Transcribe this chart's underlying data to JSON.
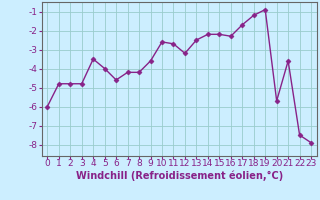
{
  "x": [
    0,
    1,
    2,
    3,
    4,
    5,
    6,
    7,
    8,
    9,
    10,
    11,
    12,
    13,
    14,
    15,
    16,
    17,
    18,
    19,
    20,
    21,
    22,
    23
  ],
  "y": [
    -6.0,
    -4.8,
    -4.8,
    -4.8,
    -3.5,
    -4.0,
    -4.6,
    -4.2,
    -4.2,
    -3.6,
    -2.6,
    -2.7,
    -3.2,
    -2.5,
    -2.2,
    -2.2,
    -2.3,
    -1.7,
    -1.2,
    -0.9,
    -5.7,
    -3.6,
    -7.5,
    -7.9
  ],
  "line_color": "#882288",
  "marker": "D",
  "markersize": 2.5,
  "linewidth": 1.0,
  "xlabel": "Windchill (Refroidissement éolien,°C)",
  "xlabel_fontsize": 7,
  "xlim": [
    -0.5,
    23.5
  ],
  "ylim": [
    -8.6,
    -0.5
  ],
  "yticks": [
    -8,
    -7,
    -6,
    -5,
    -4,
    -3,
    -2,
    -1
  ],
  "xticks": [
    0,
    1,
    2,
    3,
    4,
    5,
    6,
    7,
    8,
    9,
    10,
    11,
    12,
    13,
    14,
    15,
    16,
    17,
    18,
    19,
    20,
    21,
    22,
    23
  ],
  "background_color": "#cceeff",
  "grid_color": "#99cccc",
  "tick_color": "#882288",
  "tick_fontsize": 6.5,
  "spine_color": "#666666"
}
